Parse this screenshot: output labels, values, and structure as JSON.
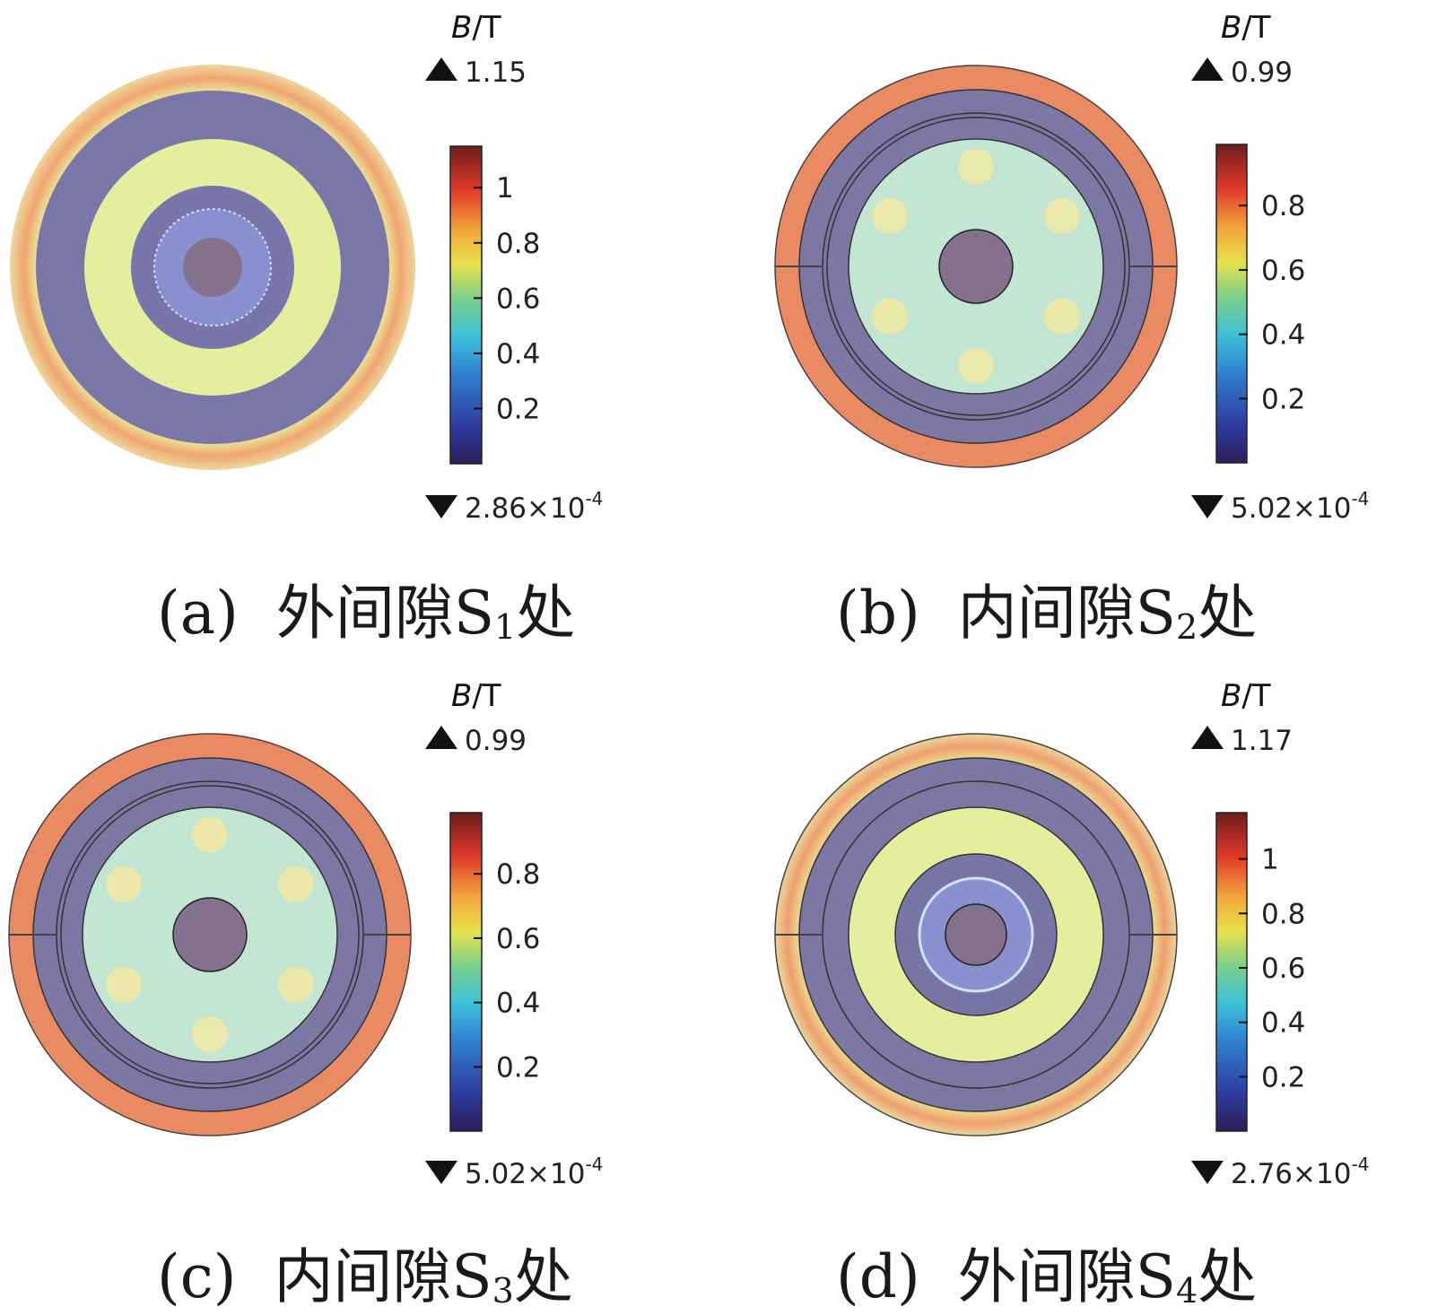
{
  "panels": [
    {
      "id": "a",
      "caption_prefix": "(a)",
      "caption_text": "外间隙S",
      "caption_sub": "1",
      "caption_suffix": "处",
      "legend_var": "B",
      "legend_unit": "/T",
      "max_label": "1.15",
      "min_base": "2.86×10",
      "min_exp": "-4",
      "ticks": [
        "1",
        "0.8",
        "0.6",
        "0.4",
        "0.2"
      ],
      "tick_values": [
        1.0,
        0.8,
        0.6,
        0.4,
        0.2
      ],
      "max_value": 1.15,
      "min_value": 0.000286
    },
    {
      "id": "b",
      "caption_prefix": "(b)",
      "caption_text": "内间隙S",
      "caption_sub": "2",
      "caption_suffix": "处",
      "legend_var": "B",
      "legend_unit": "/T",
      "max_label": "0.99",
      "min_base": "5.02×10",
      "min_exp": "-4",
      "ticks": [
        "0.8",
        "0.6",
        "0.4",
        "0.2"
      ],
      "tick_values": [
        0.8,
        0.6,
        0.4,
        0.2
      ],
      "max_value": 0.99,
      "min_value": 0.000502
    },
    {
      "id": "c",
      "caption_prefix": "(c)",
      "caption_text": "内间隙S",
      "caption_sub": "3",
      "caption_suffix": "处",
      "legend_var": "B",
      "legend_unit": "/T",
      "max_label": "0.99",
      "min_base": "5.02×10",
      "min_exp": "-4",
      "ticks": [
        "0.8",
        "0.6",
        "0.4",
        "0.2"
      ],
      "tick_values": [
        0.8,
        0.6,
        0.4,
        0.2
      ],
      "max_value": 0.99,
      "min_value": 0.000502
    },
    {
      "id": "d",
      "caption_prefix": "(d)",
      "caption_text": "外间隙S",
      "caption_sub": "4",
      "caption_suffix": "处",
      "legend_var": "B",
      "legend_unit": "/T",
      "max_label": "1.17",
      "min_base": "2.76×10",
      "min_exp": "-4",
      "ticks": [
        "1",
        "0.8",
        "0.6",
        "0.4",
        "0.2"
      ],
      "tick_values": [
        1.0,
        0.8,
        0.6,
        0.4,
        0.2
      ],
      "max_value": 1.17,
      "min_value": 0.000276
    }
  ],
  "colors": {
    "low_flux": "#7b78a8",
    "mid_flux": "#e6f0a6",
    "cyan_flux": "#bfe4dc",
    "high_flux": "#ec8b63",
    "core": "#85738f"
  }
}
